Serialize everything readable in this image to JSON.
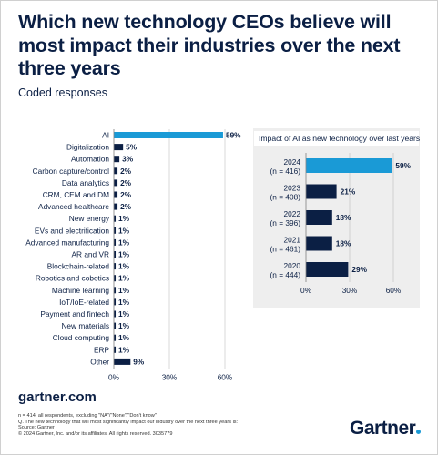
{
  "header": {
    "title": "Which new technology CEOs believe will most impact their industries over the next three years",
    "subtitle": "Coded responses"
  },
  "chart_data": [
    {
      "type": "bar",
      "orientation": "horizontal",
      "categories": [
        "AI",
        "Digitalization",
        "Automation",
        "Carbon capture/control",
        "Data analytics",
        "CRM, CEM and DM",
        "Advanced healthcare",
        "New energy",
        "EVs and electrification",
        "Advanced manufacturing",
        "AR and VR",
        "Blockchain-related",
        "Robotics and cobotics",
        "Machine learning",
        "IoT/IoE-related",
        "Payment and fintech",
        "New materials",
        "Cloud computing",
        "ERP",
        "Other"
      ],
      "values": [
        59,
        5,
        3,
        2,
        2,
        2,
        2,
        1,
        1,
        1,
        1,
        1,
        1,
        1,
        1,
        1,
        1,
        1,
        1,
        9
      ],
      "value_labels": [
        "59%",
        "5%",
        "3%",
        "2%",
        "2%",
        "2%",
        "2%",
        "1%",
        "1%",
        "1%",
        "1%",
        "1%",
        "1%",
        "1%",
        "1%",
        "1%",
        "1%",
        "1%",
        "1%",
        "9%"
      ],
      "xlim": [
        0,
        60
      ],
      "xticks": [
        "0%",
        "30%",
        "60%"
      ],
      "highlight_color": "#1a9ad6",
      "bar_color": "#0b1f44",
      "grid": true
    },
    {
      "type": "bar",
      "orientation": "horizontal",
      "title": "Impact of AI as new technology over last years",
      "categories": [
        [
          "2024",
          "(n = 416)"
        ],
        [
          "2023",
          "(n = 408)"
        ],
        [
          "2022",
          "(n = 396)"
        ],
        [
          "2021",
          "(n = 461)"
        ],
        [
          "2020",
          "(n = 444)"
        ]
      ],
      "values": [
        59,
        21,
        18,
        18,
        29
      ],
      "value_labels": [
        "59%",
        "21%",
        "18%",
        "18%",
        "29%"
      ],
      "xlim": [
        0,
        60
      ],
      "xticks": [
        "0%",
        "30%",
        "60%"
      ],
      "highlight_color": "#1a9ad6",
      "bar_color": "#0b1f44",
      "grid": true
    }
  ],
  "footer": {
    "url": "gartner.com",
    "notes": [
      "n = 414, all respondents, excluding \"NA\"/\"None\"/\"Don't know\"",
      "Q. The new technology that will most significantly impact our industry over the next three years is:",
      "Source: Gartner",
      "© 2024 Gartner, Inc. and/or its affiliates. All rights reserved. 3035779"
    ],
    "logo_text": "Gartner"
  },
  "colors": {
    "navy": "#0b1f44",
    "accent": "#1a9ad6",
    "grid": "#cfcfcf",
    "inset_background": "#eeeeee"
  }
}
